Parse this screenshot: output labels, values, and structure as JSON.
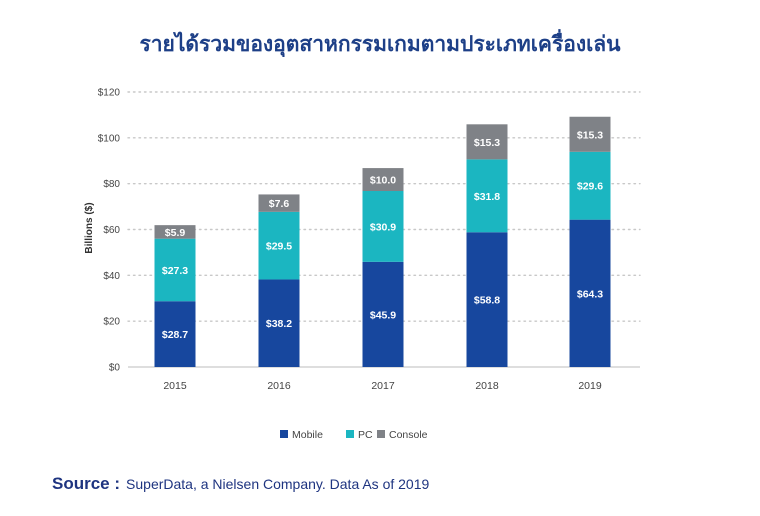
{
  "title": "รายได้รวมของอุตสาหกรรมเกมตามประเภทเครื่องเล่น",
  "source": {
    "label": "Source :",
    "text": "SuperData, a Nielsen Company. Data As of 2019"
  },
  "colors": {
    "Mobile": "#17479e",
    "PC": "#1bb6c1",
    "Console": "#7f8287",
    "grid": "#c8c8c8",
    "axis_text": "#444444",
    "title": "#1d3f87"
  },
  "chart_data": {
    "type": "bar",
    "stacked": true,
    "title": "รายได้รวมของอุตสาหกรรมเกมตามประเภทเครื่องเล่น",
    "xlabel": "",
    "ylabel": "Billions ($)",
    "ylim": [
      0,
      120
    ],
    "yticks": [
      0,
      20,
      40,
      60,
      80,
      100,
      120
    ],
    "ytick_labels": [
      "$0",
      "$20",
      "$40",
      "$60",
      "$80",
      "$100",
      "$120"
    ],
    "grid": true,
    "legend_position": "bottom-center",
    "categories": [
      "2015",
      "2016",
      "2017",
      "2018",
      "2019"
    ],
    "series": [
      {
        "name": "Mobile",
        "values": [
          28.7,
          38.2,
          45.9,
          58.8,
          64.3
        ],
        "labels": [
          "$28.7",
          "$38.2",
          "$45.9",
          "$58.8",
          "$64.3"
        ]
      },
      {
        "name": "PC",
        "values": [
          27.3,
          29.5,
          30.9,
          31.8,
          29.6
        ],
        "labels": [
          "$27.3",
          "$29.5",
          "$30.9",
          "$31.8",
          "$29.6"
        ]
      },
      {
        "name": "Console",
        "values": [
          5.9,
          7.6,
          10.0,
          15.3,
          15.3
        ],
        "labels": [
          "$5.9",
          "$7.6",
          "$10.0",
          "$15.3",
          "$15.3"
        ]
      }
    ]
  }
}
